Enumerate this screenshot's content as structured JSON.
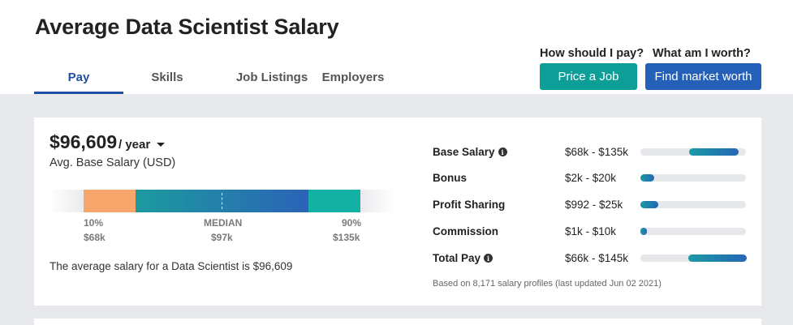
{
  "page": {
    "title": "Average Data Scientist Salary"
  },
  "tabs": [
    {
      "label": "Pay",
      "active": true
    },
    {
      "label": "Skills",
      "active": false
    },
    {
      "label": "Job Listings",
      "active": false
    },
    {
      "label": "Employers",
      "active": false
    }
  ],
  "cta": {
    "pay_question": "How should I pay?",
    "worth_question": "What am I worth?",
    "price_job_label": "Price a Job",
    "market_worth_label": "Find market worth"
  },
  "salary": {
    "amount": "$96,609",
    "period": "/ year",
    "subtitle": "Avg. Base Salary (USD)",
    "summary": "The average salary for a Data Scientist is $96,609"
  },
  "range_chart": {
    "p10": {
      "label": "10%",
      "value": "$68k"
    },
    "median": {
      "label": "MEDIAN",
      "value": "$97k"
    },
    "p90": {
      "label": "90%",
      "value": "$135k"
    },
    "colors": {
      "low": "#f7a76c",
      "mid_start": "#1c9b9f",
      "mid_end": "#2b63b8",
      "high": "#12b1a4",
      "background": "#e9eaed"
    }
  },
  "breakdown": [
    {
      "label": "Base Salary",
      "info": true,
      "range": "$68k - $135k",
      "fill_start": 0.46,
      "fill_end": 0.93
    },
    {
      "label": "Bonus",
      "info": false,
      "range": "$2k - $20k",
      "fill_start": 0.0,
      "fill_end": 0.13
    },
    {
      "label": "Profit Sharing",
      "info": false,
      "range": "$992 - $25k",
      "fill_start": 0.0,
      "fill_end": 0.17
    },
    {
      "label": "Commission",
      "info": false,
      "range": "$1k - $10k",
      "fill_start": 0.0,
      "fill_end": 0.06
    },
    {
      "label": "Total Pay",
      "info": true,
      "range": "$66k - $145k",
      "fill_start": 0.45,
      "fill_end": 1.0
    }
  ],
  "footnote": "Based on 8,171 salary profiles (last updated Jun 02 2021)"
}
